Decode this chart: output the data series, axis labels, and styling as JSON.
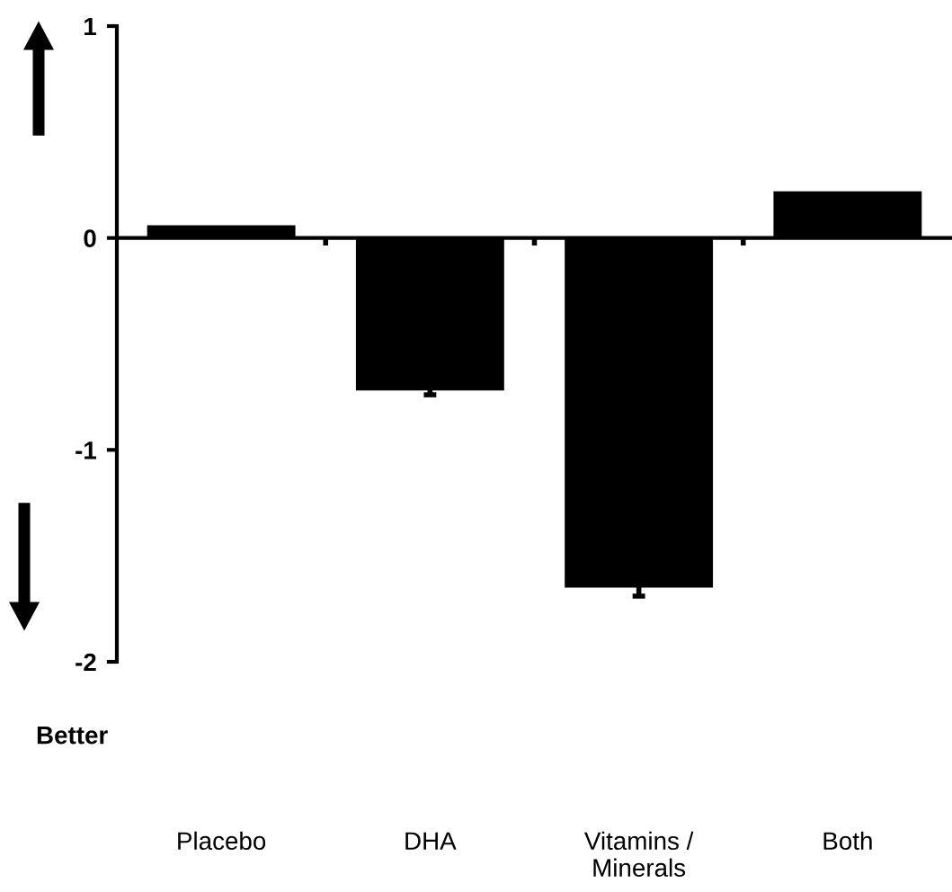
{
  "chart_data": {
    "type": "bar",
    "categories": [
      "Placebo",
      "DHA",
      "Vitamins /\nMinerals",
      "Both"
    ],
    "values": [
      0.06,
      -0.72,
      -1.65,
      0.22
    ],
    "errors": [
      null,
      0.02,
      0.04,
      null
    ],
    "color": "#000000",
    "ylim": [
      -2,
      1
    ],
    "yticks": [
      -2,
      -1,
      0,
      1
    ],
    "annotations": [
      "Better"
    ]
  }
}
